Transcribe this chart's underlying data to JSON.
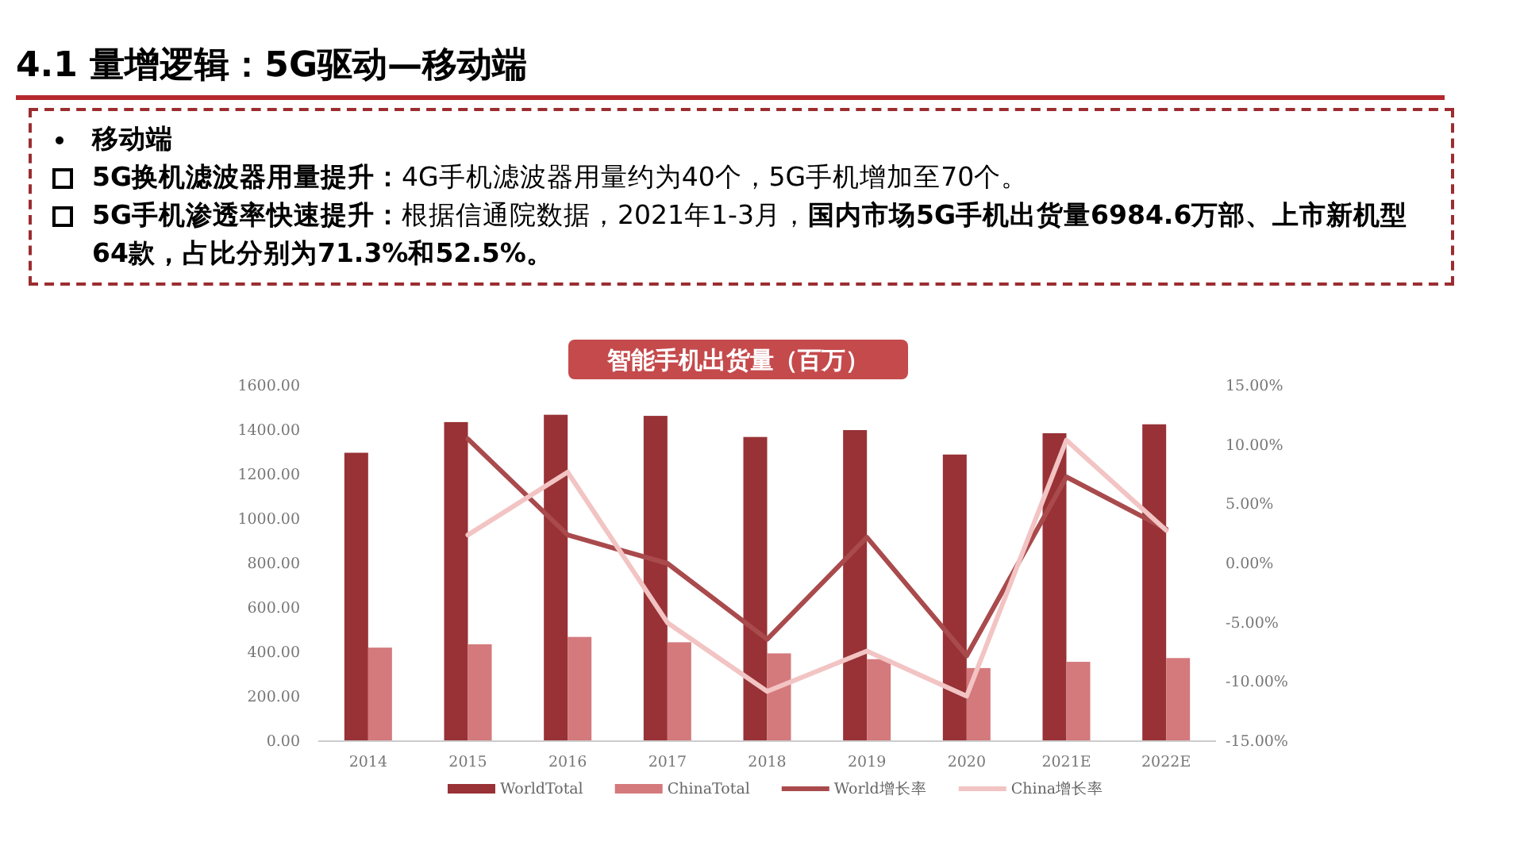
{
  "chart_data": {
    "type": "bar",
    "title": "4.1 量增逻辑：5G驱动—移动端",
    "subtitle": "智能手机出货量（百万）",
    "annotations": [
      "移动端",
      "**5G换机滤波器用量提升：**4G手机滤波器用量约为40个，5G手机增加至70个。",
      "**5G手机渗透率快速提升：**根据信通院数据，2021年1-3月，**国内市场5G手机出货量6984.6万部、上市新机型64款，占比分别为71.3%和52.5%。**"
    ],
    "categories": [
      "2014",
      "2015",
      "2016",
      "2017",
      "2018",
      "2019",
      "2020",
      "2021E",
      "2022E"
    ],
    "series": [
      {
        "name": "WorldTotal",
        "color": "#983236",
        "values": [
          1298,
          1436,
          1469,
          1464,
          1369,
          1400,
          1290,
          1386,
          1426
        ]
      },
      {
        "name": "ChinaTotal",
        "color": "#d4797c",
        "values": [
          421,
          436,
          469,
          445,
          395,
          369,
          329,
          357,
          374
        ]
      },
      {
        "name": "World增长率",
        "type": "line",
        "axis": "y2",
        "color": "#a94a4c",
        "values": [
          null,
          10.5,
          2.4,
          0,
          -6.4,
          2.2,
          -7.8,
          7.3,
          2.9
        ]
      },
      {
        "name": "China增长率",
        "type": "line",
        "axis": "y2",
        "color": "#f2c4c3",
        "values": [
          null,
          2.4,
          7.7,
          -5.0,
          -10.8,
          -7.4,
          -11.2,
          10.4,
          2.8
        ]
      }
    ],
    "ylim": [
      0,
      1600
    ],
    "yticks": [
      {
        "value": 0,
        "label": "0.00"
      },
      {
        "value": 200,
        "label": "200.00"
      },
      {
        "value": 400,
        "label": "400.00"
      },
      {
        "value": 600,
        "label": "600.00"
      },
      {
        "value": 800,
        "label": "800.00"
      },
      {
        "value": 1000,
        "label": "1000.00"
      },
      {
        "value": 1200,
        "label": "1200.00"
      },
      {
        "value": 1400,
        "label": "1400.00"
      },
      {
        "value": 1600,
        "label": "1600.00"
      }
    ],
    "y2lim": [
      -15,
      15
    ],
    "y2ticks": [
      {
        "value": -15,
        "label": "-15.00%"
      },
      {
        "value": -10,
        "label": "-10.00%"
      },
      {
        "value": -5,
        "label": "-5.00%"
      },
      {
        "value": 0,
        "label": "0.00%"
      },
      {
        "value": 5,
        "label": "5.00%"
      },
      {
        "value": 10,
        "label": "10.00%"
      },
      {
        "value": 15,
        "label": "15.00%"
      }
    ],
    "legend": "bottom",
    "grid": false,
    "marker": "none",
    "line_style": "solid"
  }
}
